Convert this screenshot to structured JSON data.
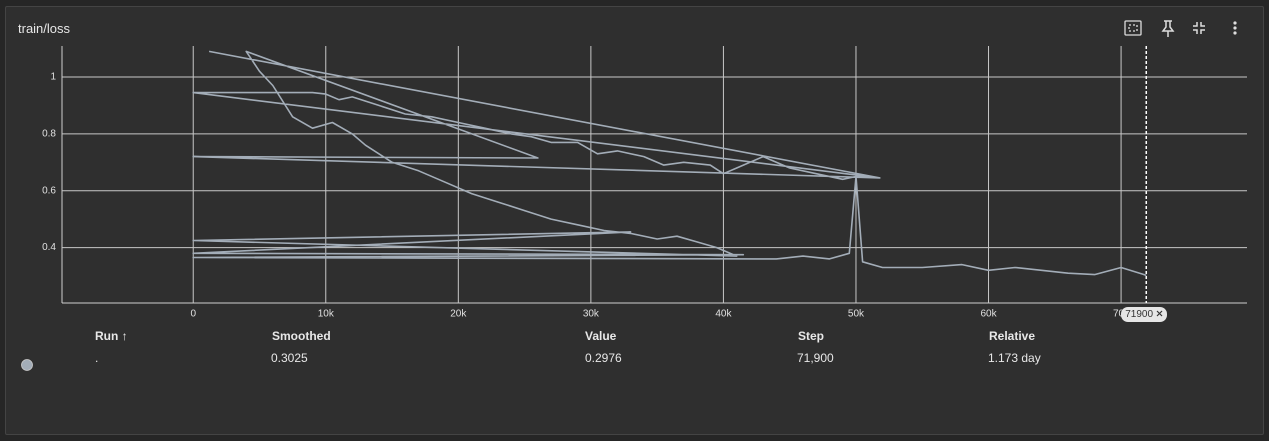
{
  "chart_data": {
    "type": "line",
    "title": "train/loss",
    "xlim": [
      -9900,
      79500
    ],
    "ylim": [
      0.205,
      1.095
    ],
    "xticks": [
      0,
      {
        "value": 10000,
        "label": "10k"
      },
      {
        "value": 20000,
        "label": "20k"
      },
      {
        "value": 30000,
        "label": "30k"
      },
      {
        "value": 40000,
        "label": "40k"
      },
      {
        "value": 50000,
        "label": "50k"
      },
      {
        "value": 60000,
        "label": "60k"
      },
      {
        "value": 70000,
        "label": "70k"
      }
    ],
    "yticks": [
      0.4,
      0.6,
      0.8,
      1
    ],
    "grid": true,
    "hover_step": 71900,
    "series": [
      {
        "name": ".",
        "color": "#a3adb8",
        "x": [
          1200,
          51800,
          0,
          9000,
          10000,
          11000,
          12000,
          14000,
          16000,
          18000,
          20000,
          22000,
          24000,
          25500,
          27000,
          29000,
          30500,
          32000,
          34000,
          35500,
          37000,
          39000,
          40000,
          41000,
          43000,
          45000,
          47000,
          49000,
          50000,
          51800,
          0,
          26000,
          4000,
          5000,
          6000,
          7500,
          9000,
          10500,
          12000,
          13000,
          15000,
          17000,
          19000,
          21000,
          23000,
          25000,
          27000,
          29000,
          31000,
          33000,
          35000,
          36500,
          38000,
          39500,
          41000,
          0,
          33000,
          0,
          41500,
          0,
          42500,
          44000,
          46000,
          48000,
          49500,
          50000,
          50500,
          52000,
          55000,
          58000,
          60000,
          62000,
          64000,
          66000,
          68000,
          70000,
          71900
        ],
        "values": [
          1.09,
          0.645,
          0.945,
          0.945,
          0.94,
          0.92,
          0.93,
          0.9,
          0.87,
          0.86,
          0.84,
          0.82,
          0.8,
          0.79,
          0.77,
          0.77,
          0.73,
          0.74,
          0.72,
          0.69,
          0.7,
          0.69,
          0.66,
          0.68,
          0.72,
          0.68,
          0.66,
          0.64,
          0.65,
          0.645,
          0.72,
          0.715,
          1.09,
          1.02,
          0.97,
          0.86,
          0.82,
          0.84,
          0.8,
          0.76,
          0.7,
          0.67,
          0.63,
          0.59,
          0.56,
          0.53,
          0.5,
          0.48,
          0.46,
          0.45,
          0.43,
          0.44,
          0.42,
          0.4,
          0.37,
          0.425,
          0.455,
          0.38,
          0.375,
          0.365,
          0.36,
          0.36,
          0.37,
          0.36,
          0.38,
          0.65,
          0.35,
          0.33,
          0.33,
          0.34,
          0.32,
          0.33,
          0.32,
          0.31,
          0.305,
          0.33,
          0.3025
        ]
      }
    ]
  },
  "table": {
    "headers": {
      "run": "Run ↑",
      "smoothed": "Smoothed",
      "value": "Value",
      "step": "Step",
      "relative": "Relative"
    },
    "row": {
      "smoothed": "0.3025",
      "value": "0.2976",
      "step": "71,900",
      "relative": "1.173 day"
    }
  }
}
